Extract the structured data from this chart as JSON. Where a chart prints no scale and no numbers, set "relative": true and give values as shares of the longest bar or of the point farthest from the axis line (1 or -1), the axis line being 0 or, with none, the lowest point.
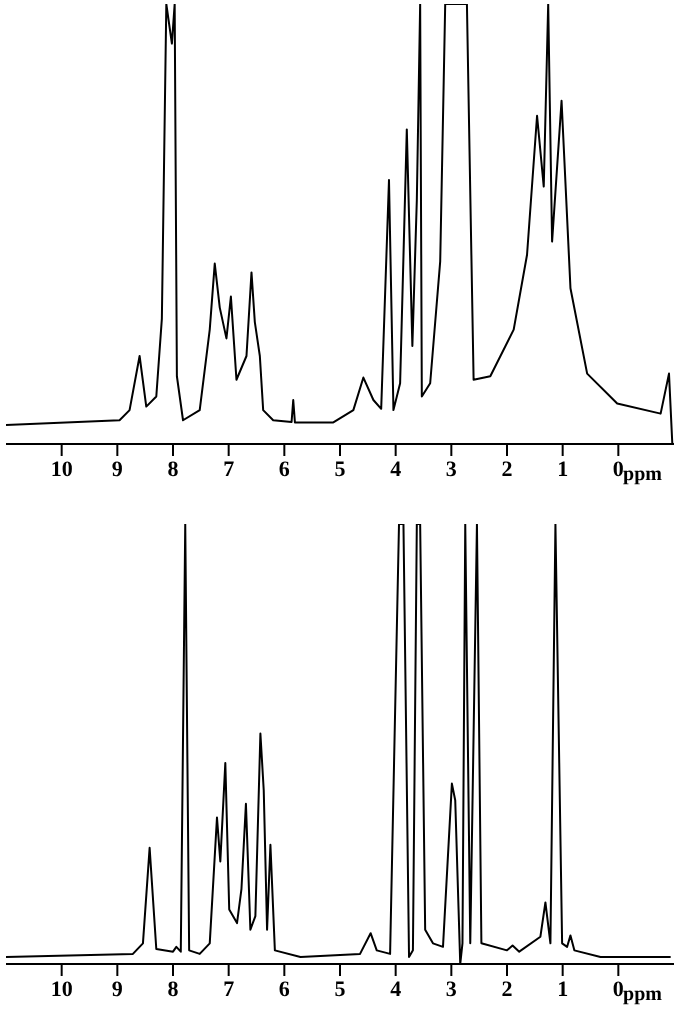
{
  "chart_data": [
    {
      "type": "line",
      "relative": true,
      "xlabel": "ppm",
      "xlim": [
        11,
        -1
      ],
      "xticks": [
        10,
        9,
        8,
        7,
        6,
        5,
        4,
        3,
        2,
        1,
        0
      ],
      "marker": "none",
      "line_style": "solid",
      "series": [
        {
          "color": "#000000",
          "x": [
            11.0,
            8.96,
            8.78,
            8.6,
            8.48,
            8.3,
            8.2,
            8.12,
            8.02,
            7.97,
            7.93,
            7.82,
            7.52,
            7.34,
            7.25,
            7.16,
            7.04,
            6.96,
            6.86,
            6.68,
            6.59,
            6.53,
            6.44,
            6.38,
            6.2,
            5.87,
            5.84,
            5.81,
            5.12,
            4.76,
            4.58,
            4.4,
            4.26,
            4.12,
            4.04,
            3.92,
            3.8,
            3.7,
            3.62,
            3.56,
            3.53,
            3.38,
            3.2,
            3.11,
            2.72,
            2.6,
            2.3,
            1.88,
            1.64,
            1.46,
            1.34,
            1.26,
            1.19,
            1.02,
            0.86,
            0.56,
            0.02,
            -0.76,
            -0.91,
            -0.97
          ],
          "values": [
            0.043,
            0.054,
            0.077,
            0.2,
            0.085,
            0.108,
            0.285,
            1,
            0.91,
            1,
            0.154,
            0.054,
            0.077,
            0.26,
            0.41,
            0.31,
            0.24,
            0.335,
            0.146,
            0.2,
            0.39,
            0.277,
            0.2,
            0.077,
            0.054,
            0.05,
            0.1,
            0.049,
            0.049,
            0.077,
            0.151,
            0.1,
            0.08,
            0.6,
            0.077,
            0.138,
            0.715,
            0.223,
            0.554,
            1,
            0.108,
            0.138,
            0.415,
            1,
            1,
            0.146,
            0.154,
            0.26,
            0.43,
            0.746,
            0.585,
            1,
            0.46,
            0.78,
            0.354,
            0.16,
            0.092,
            0.069,
            0.16,
            0
          ]
        }
      ]
    },
    {
      "type": "line",
      "relative": true,
      "xlabel": "ppm",
      "xlim": [
        11,
        -1
      ],
      "xticks": [
        10,
        9,
        8,
        7,
        6,
        5,
        4,
        3,
        2,
        1,
        0
      ],
      "marker": "none",
      "line_style": "solid",
      "series": [
        {
          "color": "#000000",
          "x": [
            11.0,
            8.72,
            8.54,
            8.42,
            8.3,
            8.0,
            7.94,
            7.86,
            7.78,
            7.71,
            7.52,
            7.34,
            7.21,
            7.15,
            7.06,
            6.99,
            6.85,
            6.77,
            6.69,
            6.61,
            6.52,
            6.43,
            6.37,
            6.31,
            6.25,
            6.17,
            5.71,
            4.64,
            4.45,
            4.34,
            4.1,
            3.94,
            3.86,
            3.76,
            3.69,
            3.62,
            3.56,
            3.47,
            3.33,
            3.15,
            2.99,
            2.93,
            2.87,
            2.84,
            2.8,
            2.75,
            2.66,
            2.54,
            2.46,
            2.0,
            1.9,
            1.78,
            1.4,
            1.31,
            1.22,
            1.13,
            1.01,
            0.92,
            0.86,
            0.79,
            0.32,
            -0.94
          ],
          "values": [
            0.016,
            0.023,
            0.047,
            0.264,
            0.034,
            0.028,
            0.039,
            0.028,
            1,
            0.031,
            0.023,
            0.047,
            0.333,
            0.233,
            0.457,
            0.124,
            0.093,
            0.171,
            0.364,
            0.078,
            0.109,
            0.524,
            0.395,
            0.078,
            0.271,
            0.031,
            0.016,
            0.023,
            0.07,
            0.031,
            0.023,
            1,
            1,
            0.016,
            0.031,
            1,
            1,
            0.078,
            0.047,
            0.039,
            0.41,
            0.372,
            0.124,
            0,
            0.047,
            1,
            0.047,
            1,
            0.047,
            0.031,
            0.042,
            0.028,
            0.062,
            0.14,
            0.047,
            1,
            0.047,
            0.039,
            0.065,
            0.031,
            0.016,
            0.016
          ]
        }
      ]
    }
  ]
}
